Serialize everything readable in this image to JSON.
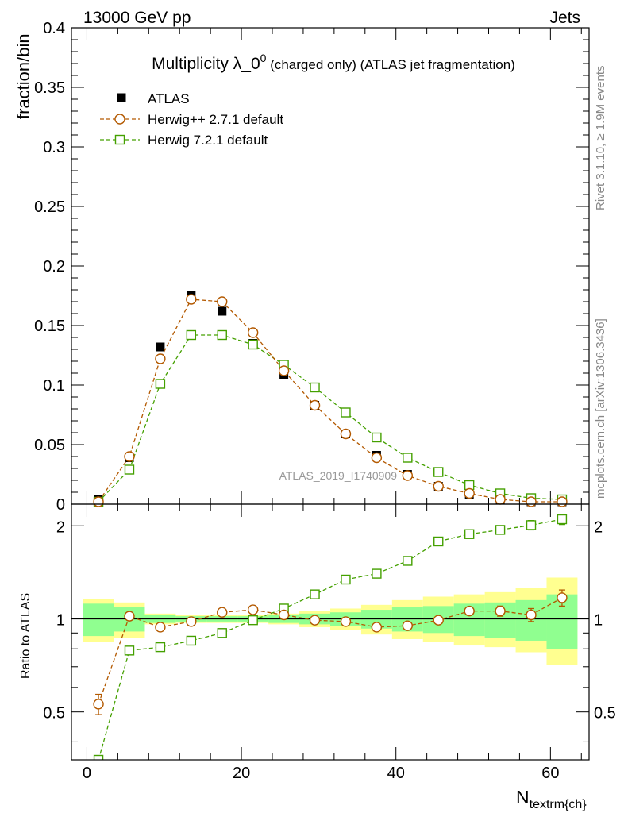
{
  "header": {
    "left": "13000 GeV pp",
    "right": "Jets"
  },
  "side_labels": {
    "rivet": "Rivet 3.1.10, ≥ 1.9M events",
    "mcplots": "mcplots.cern.ch [arXiv:1306.3436]"
  },
  "chart_data": [
    {
      "type": "scatter",
      "title_main": "Multiplicity λ_0",
      "title_sup": "0",
      "title_rest": " (charged only) (ATLAS jet fragmentation)",
      "ylabel": "fraction/bin",
      "watermark": "ATLAS_2019_I1740909",
      "ylim": [
        0,
        0.4
      ],
      "xlim": [
        -2,
        65
      ],
      "ytick_labels": [
        "0",
        "0.05",
        "0.1",
        "0.15",
        "0.2",
        "0.25",
        "0.3",
        "0.35",
        "0.4"
      ],
      "legend": [
        "ATLAS",
        "Herwig++ 2.7.1 default",
        "Herwig 7.2.1 default"
      ],
      "legend_position": "top-left",
      "x": [
        1.5,
        5.5,
        9.5,
        13.5,
        17.5,
        21.5,
        25.5,
        29.5,
        33.5,
        37.5,
        41.5,
        45.5,
        49.5,
        53.5,
        57.5,
        61.5
      ],
      "series": [
        {
          "name": "ATLAS",
          "color": "#000000",
          "marker": "filled-square",
          "values": [
            0.004,
            0.039,
            0.132,
            0.175,
            0.162,
            0.135,
            0.109,
            0.083,
            0.059,
            0.041,
            0.025,
            0.015,
            0.008,
            0.004,
            0.002,
            0.002
          ]
        },
        {
          "name": "Herwig++ 2.7.1 default",
          "color": "#b35900",
          "marker": "open-circle",
          "values": [
            0.002,
            0.04,
            0.122,
            0.172,
            0.17,
            0.144,
            0.112,
            0.083,
            0.059,
            0.039,
            0.024,
            0.015,
            0.009,
            0.004,
            0.002,
            0.002
          ]
        },
        {
          "name": "Herwig 7.2.1 default",
          "color": "#44a000",
          "marker": "open-square",
          "values": [
            0.002,
            0.029,
            0.101,
            0.142,
            0.142,
            0.134,
            0.117,
            0.098,
            0.077,
            0.056,
            0.039,
            0.027,
            0.016,
            0.009,
            0.005,
            0.004
          ]
        }
      ]
    },
    {
      "type": "scatter",
      "ylabel": "Ratio to ATLAS",
      "xlabel": "N",
      "xlabel_sub": "textrm{ch}",
      "xlim": [
        -2,
        65
      ],
      "ylim": [
        0.35,
        2.35
      ],
      "xtick_labels": [
        "0",
        "20",
        "40",
        "60"
      ],
      "ytick_labels": [
        "0.5",
        "1",
        "2"
      ],
      "bands": {
        "edges": [
          -0.5,
          3.5,
          7.5,
          11.5,
          15.5,
          19.5,
          23.5,
          27.5,
          31.5,
          35.5,
          39.5,
          43.5,
          47.5,
          51.5,
          55.5,
          59.5,
          63.5
        ],
        "inner_color": "#90ff90",
        "outer_color": "#ffff90",
        "inner_lo": [
          0.88,
          0.91,
          0.97,
          0.98,
          0.98,
          0.98,
          0.97,
          0.96,
          0.95,
          0.93,
          0.91,
          0.9,
          0.88,
          0.87,
          0.85,
          0.8
        ],
        "inner_hi": [
          1.12,
          1.09,
          1.03,
          1.02,
          1.02,
          1.02,
          1.03,
          1.04,
          1.05,
          1.07,
          1.09,
          1.1,
          1.12,
          1.13,
          1.15,
          1.2
        ],
        "outer_lo": [
          0.84,
          0.87,
          0.96,
          0.97,
          0.97,
          0.97,
          0.96,
          0.94,
          0.92,
          0.89,
          0.86,
          0.84,
          0.82,
          0.81,
          0.78,
          0.71
        ],
        "outer_hi": [
          1.16,
          1.13,
          1.04,
          1.03,
          1.03,
          1.03,
          1.04,
          1.06,
          1.08,
          1.11,
          1.15,
          1.18,
          1.2,
          1.22,
          1.26,
          1.36
        ]
      },
      "x": [
        1.5,
        5.5,
        9.5,
        13.5,
        17.5,
        21.5,
        25.5,
        29.5,
        33.5,
        37.5,
        41.5,
        45.5,
        49.5,
        53.5,
        57.5,
        61.5
      ],
      "series": [
        {
          "name": "Herwig++ 2.7.1 default",
          "color": "#b35900",
          "marker": "open-circle",
          "values": [
            0.53,
            1.02,
            0.94,
            0.98,
            1.05,
            1.07,
            1.03,
            0.99,
            0.98,
            0.94,
            0.95,
            0.99,
            1.06,
            1.06,
            1.03,
            1.17
          ],
          "errors": [
            0.04,
            0.01,
            0.01,
            0.01,
            0.01,
            0.01,
            0.01,
            0.01,
            0.01,
            0.01,
            0.01,
            0.01,
            0.03,
            0.04,
            0.05,
            0.07
          ]
        },
        {
          "name": "Herwig 7.2.1 default",
          "color": "#44a000",
          "marker": "open-square",
          "values": [
            0.35,
            0.79,
            0.81,
            0.85,
            0.9,
            0.99,
            1.08,
            1.2,
            1.34,
            1.4,
            1.54,
            1.78,
            1.88,
            1.94,
            2.01,
            2.1
          ],
          "errors": [
            0.0,
            0.01,
            0.01,
            0.01,
            0.01,
            0.01,
            0.01,
            0.01,
            0.01,
            0.02,
            0.02,
            0.02,
            0.03,
            0.05,
            0.07,
            0.08
          ]
        }
      ]
    }
  ]
}
